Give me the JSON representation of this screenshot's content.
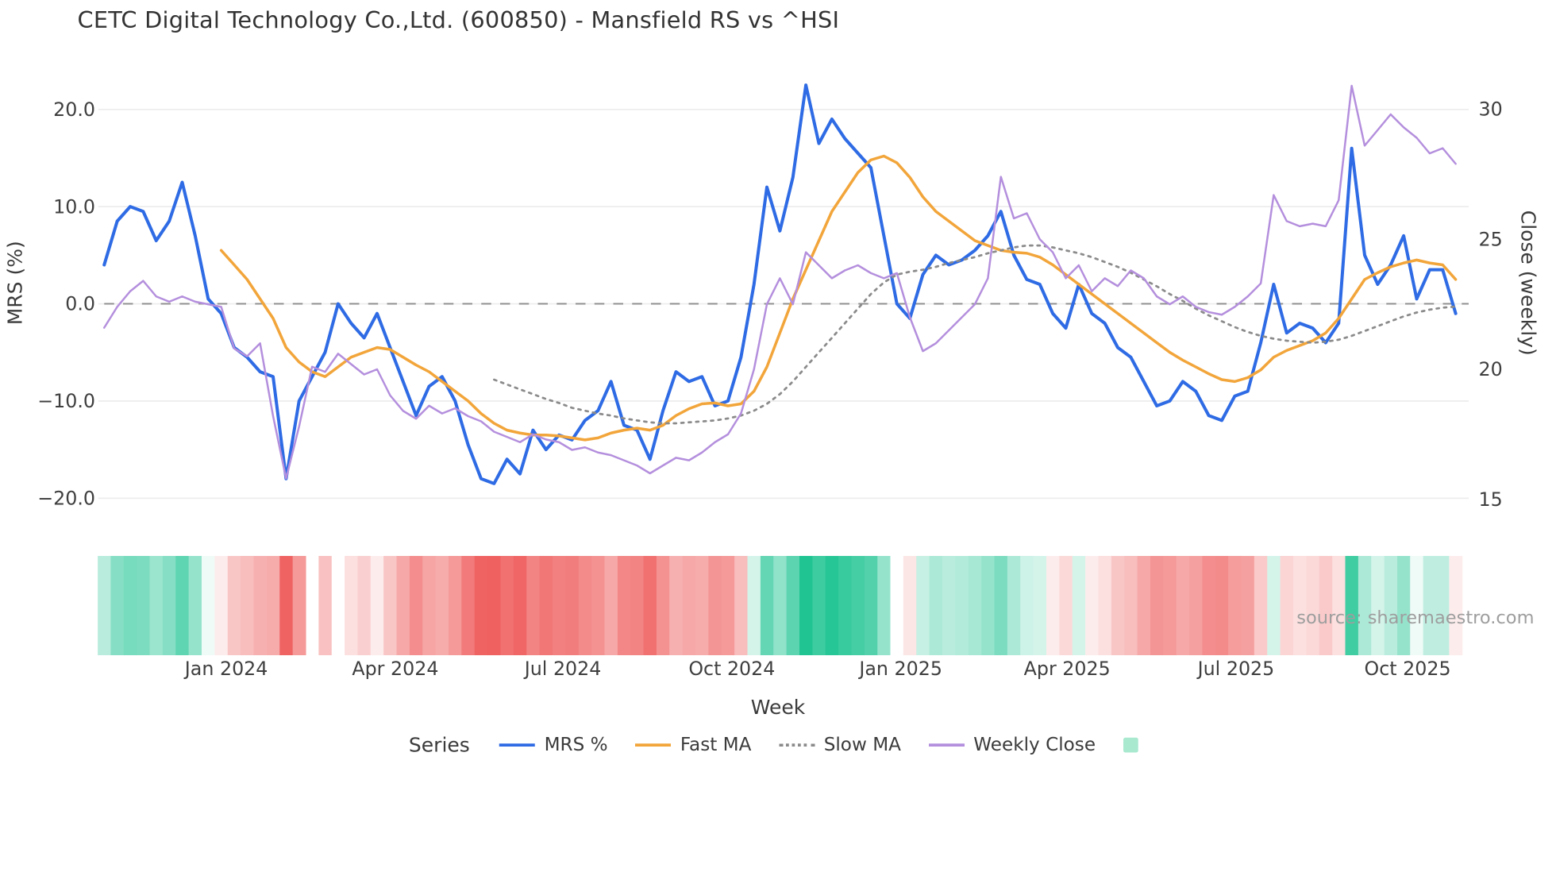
{
  "source_watermark": "source: sharemaestro.com",
  "legend": {
    "series_label": "Series",
    "items": [
      {
        "label": "MRS %",
        "color": "#2e6be4",
        "swatch": "line-solid"
      },
      {
        "label": "Fast MA",
        "color": "#f2a53a",
        "swatch": "line-solid"
      },
      {
        "label": "Slow MA",
        "color": "#8b8b8b",
        "swatch": "line-dotted"
      },
      {
        "label": "Weekly Close",
        "color": "#b48fdd",
        "swatch": "line-solid"
      },
      {
        "label": "",
        "color": "#a9e9d0",
        "swatch": "square"
      }
    ]
  },
  "chart_data": {
    "type": "line",
    "title": "CETC Digital Technology Co.,Ltd. (600850) - Mansfield RS vs ^HSI",
    "xlabel": "Week",
    "ylabel_left": "MRS (%)",
    "ylabel_right": "Close (weekly)",
    "x_unit": "week_index",
    "n_points": 105,
    "ylim_left": [
      -24,
      25
    ],
    "ylim_right": [
      14.5,
      31.5
    ],
    "grid": true,
    "zero_reference_line": true,
    "legend_position": "bottom",
    "left_ticks": [
      {
        "v": 20,
        "label": "20.0"
      },
      {
        "v": 10,
        "label": "10.0"
      },
      {
        "v": 0,
        "label": "0.0"
      },
      {
        "v": -10,
        "label": "−10.0"
      },
      {
        "v": -20,
        "label": "−20.0"
      }
    ],
    "right_ticks": [
      {
        "v": 30,
        "label": "30"
      },
      {
        "v": 25,
        "label": "25"
      },
      {
        "v": 20,
        "label": "20"
      },
      {
        "v": 15,
        "label": "15"
      }
    ],
    "x_ticks": [
      {
        "i": 9.4,
        "label": "Jan 2024"
      },
      {
        "i": 22.4,
        "label": "Apr 2024"
      },
      {
        "i": 35.3,
        "label": "Jul 2024"
      },
      {
        "i": 48.3,
        "label": "Oct 2024"
      },
      {
        "i": 61.3,
        "label": "Jan 2025"
      },
      {
        "i": 74.1,
        "label": "Apr 2025"
      },
      {
        "i": 87.1,
        "label": "Jul 2025"
      },
      {
        "i": 100.3,
        "label": "Oct 2025"
      }
    ],
    "series": [
      {
        "name": "MRS %",
        "axis": "left",
        "color": "#2e6be4",
        "width": 3.2,
        "dash": "solid",
        "values": [
          4,
          8.5,
          10,
          9.5,
          6.5,
          8.5,
          12.5,
          7,
          0.5,
          -1,
          -4.5,
          -5.5,
          -7,
          -7.5,
          -18,
          -10,
          -7.5,
          -5,
          0,
          -2,
          -3.5,
          -1,
          -4.5,
          -8,
          -11.5,
          -8.5,
          -7.5,
          -10,
          -14.5,
          -18,
          -18.5,
          -16,
          -17.5,
          -13,
          -15,
          -13.5,
          -14,
          -12,
          -11,
          -8,
          -12.5,
          -13,
          -16,
          -11,
          -7,
          -8,
          -7.5,
          -10.5,
          -10,
          -5.5,
          2,
          12,
          7.5,
          13,
          22.5,
          16.5,
          19,
          17,
          15.5,
          14,
          7,
          0,
          -1.5,
          3,
          5,
          4,
          4.5,
          5.5,
          7,
          9.5,
          5,
          2.5,
          2,
          -1,
          -2.5,
          2,
          -1,
          -2,
          -4.5,
          -5.5,
          -8,
          -10.5,
          -10,
          -8,
          -9,
          -11.5,
          -12,
          -9.5,
          -9,
          -4,
          2,
          -3,
          -2,
          -2.5,
          -4,
          -2,
          16,
          5,
          2,
          4,
          7,
          0.5,
          3.5,
          3.5,
          -1
        ]
      },
      {
        "name": "Fast MA",
        "axis": "left",
        "color": "#f2a53a",
        "width": 2.8,
        "dash": "solid",
        "values": [
          null,
          null,
          null,
          null,
          null,
          null,
          null,
          null,
          null,
          5.5,
          4,
          2.5,
          0.5,
          -1.5,
          -4.5,
          -6,
          -7,
          -7.5,
          -6.5,
          -5.5,
          -5,
          -4.5,
          -4.7,
          -5.5,
          -6.3,
          -7,
          -8,
          -9,
          -10,
          -11.3,
          -12.3,
          -13,
          -13.3,
          -13.5,
          -13.5,
          -13.6,
          -13.8,
          -14,
          -13.8,
          -13.3,
          -13,
          -12.8,
          -13,
          -12.5,
          -11.5,
          -10.8,
          -10.3,
          -10.2,
          -10.5,
          -10.3,
          -9,
          -6.5,
          -3,
          0.5,
          3.5,
          6.5,
          9.5,
          11.5,
          13.5,
          14.8,
          15.2,
          14.5,
          13,
          11,
          9.5,
          8.5,
          7.5,
          6.5,
          6,
          5.5,
          5.3,
          5.2,
          4.8,
          4,
          3,
          2,
          1,
          0,
          -1,
          -2,
          -3,
          -4,
          -5,
          -5.8,
          -6.5,
          -7.2,
          -7.8,
          -8,
          -7.6,
          -6.8,
          -5.5,
          -4.8,
          -4.3,
          -3.8,
          -3,
          -1.5,
          0.5,
          2.5,
          3.2,
          3.8,
          4.2,
          4.5,
          4.2,
          4,
          2.5
        ]
      },
      {
        "name": "Slow MA",
        "axis": "left",
        "color": "#8b8b8b",
        "width": 2.2,
        "dash": "dotted",
        "values": [
          null,
          null,
          null,
          null,
          null,
          null,
          null,
          null,
          null,
          null,
          null,
          null,
          null,
          null,
          null,
          null,
          null,
          null,
          null,
          null,
          null,
          null,
          null,
          null,
          null,
          null,
          null,
          null,
          null,
          null,
          -7.8,
          -8.3,
          -8.8,
          -9.3,
          -9.8,
          -10.2,
          -10.7,
          -11,
          -11.3,
          -11.5,
          -11.8,
          -12,
          -12.2,
          -12.3,
          -12.3,
          -12.2,
          -12.1,
          -12,
          -11.8,
          -11.5,
          -11,
          -10.3,
          -9.3,
          -8,
          -6.5,
          -5,
          -3.5,
          -2,
          -0.5,
          1,
          2.2,
          3,
          3.3,
          3.5,
          3.8,
          4.2,
          4.5,
          4.8,
          5.2,
          5.5,
          5.8,
          6,
          6,
          5.8,
          5.5,
          5.2,
          4.8,
          4.3,
          3.8,
          3.2,
          2.5,
          1.8,
          1,
          0.3,
          -0.5,
          -1.2,
          -1.8,
          -2.4,
          -2.9,
          -3.3,
          -3.6,
          -3.8,
          -3.9,
          -4,
          -3.9,
          -3.7,
          -3.3,
          -2.8,
          -2.3,
          -1.8,
          -1.3,
          -0.9,
          -0.6,
          -0.4,
          -0.3
        ]
      },
      {
        "name": "Weekly Close",
        "axis": "right",
        "color": "#b48fdd",
        "width": 2,
        "dash": "solid",
        "values": [
          21.6,
          22.4,
          23,
          23.4,
          22.8,
          22.6,
          22.8,
          22.6,
          22.5,
          22.4,
          20.8,
          20.5,
          21,
          18.2,
          15.8,
          17.8,
          20.1,
          19.9,
          20.6,
          20.2,
          19.8,
          20,
          19,
          18.4,
          18.1,
          18.6,
          18.3,
          18.5,
          18.2,
          18,
          17.6,
          17.4,
          17.2,
          17.5,
          17.3,
          17.2,
          16.9,
          17,
          16.8,
          16.7,
          16.5,
          16.3,
          16,
          16.3,
          16.6,
          16.5,
          16.8,
          17.2,
          17.5,
          18.3,
          20,
          22.5,
          23.5,
          22.5,
          24.5,
          24,
          23.5,
          23.8,
          24,
          23.7,
          23.5,
          23.7,
          22,
          20.7,
          21,
          21.5,
          22,
          22.5,
          23.5,
          27.4,
          25.8,
          26,
          25,
          24.5,
          23.5,
          24,
          23,
          23.5,
          23.2,
          23.8,
          23.5,
          22.8,
          22.5,
          22.8,
          22.4,
          22.2,
          22.1,
          22.4,
          22.8,
          23.3,
          26.7,
          25.7,
          25.5,
          25.6,
          25.5,
          26.5,
          30.9,
          28.6,
          29.2,
          29.8,
          29.3,
          28.9,
          28.3,
          28.5,
          27.9
        ]
      }
    ],
    "heatmap": {
      "description": "red-green strip below chart encoding MRS % sign and magnitude per week",
      "source_series": "MRS %",
      "scale_abs": 20,
      "positive_color": "#1fc492",
      "negative_color": "#ee5757",
      "gap_indices": [
        16
      ]
    }
  }
}
